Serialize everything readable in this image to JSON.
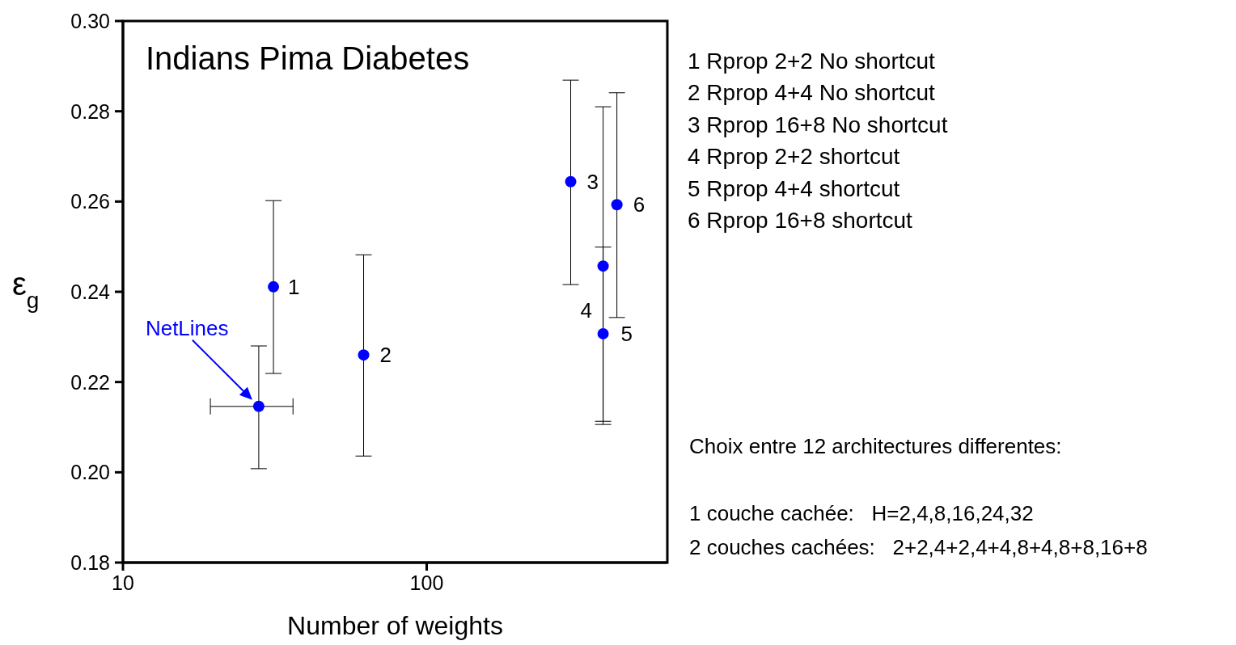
{
  "chart_data": {
    "type": "scatter",
    "title": "Indians Pima Diabetes",
    "xlabel": "Number of weights",
    "ylabel": "ε$_{g}$",
    "log": "x",
    "marker": "circle",
    "xlim": [
      10,
      620
    ],
    "xticks": [
      10,
      100
    ],
    "ylim": [
      0.18,
      0.3
    ],
    "yticks": [
      {
        "value": 0.18,
        "label": "0.18"
      },
      {
        "value": 0.2,
        "label": "0.20"
      },
      {
        "value": 0.22,
        "label": "0.22"
      },
      {
        "value": 0.24,
        "label": "0.24"
      },
      {
        "value": 0.26,
        "label": "0.26"
      },
      {
        "value": 0.28,
        "label": "0.28"
      },
      {
        "value": 0.3,
        "label": "0.30"
      }
    ],
    "series": [
      {
        "color": "#0000ff",
        "x": [
          28,
          31.3,
          62,
          298,
          381,
          381,
          423
        ],
        "values": [
          0.2146,
          0.2411,
          0.226,
          0.2644,
          0.2457,
          0.2307,
          0.2593
        ],
        "errors": [
          [
            0.2008,
            0.228
          ],
          [
            0.2219,
            0.2602
          ],
          [
            0.2036,
            0.2482
          ],
          [
            0.2416,
            0.2869
          ],
          [
            0.2113,
            0.2499
          ],
          [
            0.2106,
            0.281
          ],
          [
            0.2343,
            0.2841
          ]
        ],
        "xerrors": [
          [
            19.4,
            36.3
          ],
          null,
          null,
          null,
          null,
          null,
          null
        ]
      }
    ],
    "annotations": [
      "NetLines",
      {
        "text": "1",
        "x": 31.3,
        "y": 0.2411
      },
      {
        "text": "2",
        "x": 62,
        "y": 0.226
      },
      {
        "text": "3",
        "x": 298,
        "y": 0.2644
      },
      {
        "text": "4",
        "x": 381,
        "y": 0.2457
      },
      {
        "text": "5",
        "x": 381,
        "y": 0.2307
      },
      {
        "text": "6",
        "x": 423,
        "y": 0.2593
      },
      "1 Rprop 2+2 No shortcut",
      "2 Rprop 4+4 No shortcut",
      "3 Rprop 16+8 No shortcut",
      "4 Rprop 2+2 shortcut",
      "5 Rprop 4+4 shortcut",
      "6 Rprop 16+8 shortcut",
      "Choix entre 12 architectures differentes:",
      "1 couche cachée:   H=2,4,8,16,24,32",
      "2 couches cachées:   2+2,4+2,4+4,8+4,8+8,16+8"
    ]
  }
}
